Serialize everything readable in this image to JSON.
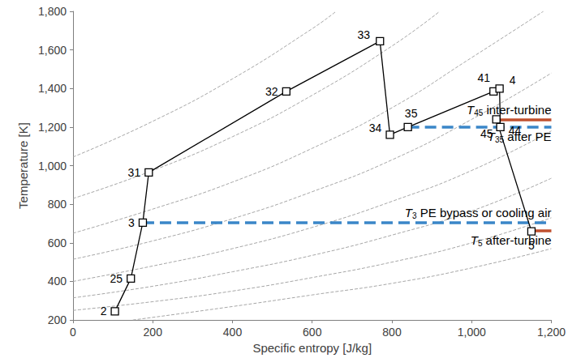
{
  "chart_data": {
    "type": "line",
    "x_label": "Specific entropy [J/kg]",
    "y_label": "Temperature [K]",
    "xlim": [
      0,
      1200
    ],
    "xticks": [
      0,
      200,
      400,
      600,
      800,
      {
        "value": 1000,
        "label": "1,000"
      },
      {
        "value": 1200,
        "label": "1,200"
      }
    ],
    "ylim": [
      200,
      1800
    ],
    "yticks": [
      200,
      400,
      600,
      800,
      {
        "value": 1000,
        "label": "1,000"
      },
      {
        "value": 1200,
        "label": "1,200"
      },
      {
        "value": 1400,
        "label": "1,400"
      },
      {
        "value": 1600,
        "label": "1,600"
      },
      {
        "value": 1800,
        "label": "1,800"
      }
    ],
    "grid": false,
    "series": [
      {
        "type": "line",
        "line_style": "dashed",
        "color": "#a6a6a6",
        "marker": "none",
        "x": [
          0,
          200,
          400,
          600,
          660
        ],
        "values": [
          1045,
          1230,
          1450,
          1710,
          1800
        ]
      },
      {
        "type": "line",
        "line_style": "dashed",
        "color": "#a6a6a6",
        "marker": "none",
        "x": [
          0,
          200,
          400,
          600,
          800,
          920
        ],
        "values": [
          830,
          975,
          1150,
          1365,
          1620,
          1800
        ]
      },
      {
        "type": "line",
        "line_style": "dashed",
        "color": "#a6a6a6",
        "marker": "none",
        "x": [
          0,
          200,
          400,
          600,
          800,
          1000,
          1180
        ],
        "values": [
          650,
          775,
          915,
          1090,
          1300,
          1560,
          1800
        ]
      },
      {
        "type": "line",
        "line_style": "dashed",
        "color": "#a6a6a6",
        "marker": "none",
        "x": [
          0,
          200,
          400,
          600,
          800,
          1000,
          1200
        ],
        "values": [
          515,
          610,
          725,
          865,
          1030,
          1240,
          1480
        ]
      },
      {
        "type": "line",
        "line_style": "dashed",
        "color": "#a6a6a6",
        "marker": "none",
        "x": [
          0,
          200,
          400,
          600,
          800,
          1000,
          1200
        ],
        "values": [
          400,
          480,
          570,
          680,
          815,
          975,
          1180
        ]
      },
      {
        "type": "line",
        "line_style": "dashed",
        "color": "#a6a6a6",
        "marker": "none",
        "x": [
          0,
          200,
          400,
          600,
          800,
          1000,
          1200
        ],
        "values": [
          315,
          375,
          450,
          535,
          640,
          765,
          935
        ]
      },
      {
        "type": "line",
        "line_style": "dashed",
        "color": "#a6a6a6",
        "marker": "none",
        "x": [
          0,
          200,
          400,
          600,
          800,
          1000,
          1200
        ],
        "values": [
          250,
          295,
          350,
          420,
          500,
          600,
          730
        ]
      },
      {
        "type": "line",
        "line_style": "dashed",
        "color": "#a6a6a6",
        "marker": "none",
        "x": [
          150,
          400,
          600,
          800,
          1000,
          1200
        ],
        "values": [
          200,
          270,
          330,
          390,
          470,
          570
        ]
      },
      {
        "type": "line",
        "line_style": "solid",
        "color": "#000000",
        "marker": "square",
        "x": [
          105,
          145,
          175,
          190,
          535,
          770,
          795,
          840,
          1055,
          1070,
          1072,
          1062,
          1150
        ],
        "values": [
          245,
          415,
          705,
          965,
          1385,
          1645,
          1160,
          1200,
          1385,
          1400,
          1200,
          1240,
          660
        ],
        "point_labels": [
          "2",
          "25",
          "3",
          "31",
          "32",
          "33",
          "34",
          "35",
          "41",
          "4",
          "44",
          "45",
          "5"
        ]
      }
    ],
    "annotations": [
      {
        "var": "T",
        "sub": "45",
        "text": "inter-turbine",
        "x": 1062,
        "y": 1240,
        "color": "#c0502e",
        "line_style": "solid",
        "position": "above"
      },
      {
        "var": "T",
        "sub": "35",
        "text": "after PE",
        "x": 840,
        "y": 1200,
        "color": "#3a86c8",
        "line_style": "dashed",
        "position": "below"
      },
      {
        "var": "T",
        "sub": "3",
        "text": "PE bypass or cooling air",
        "x": 175,
        "y": 705,
        "color": "#3a86c8",
        "line_style": "dashed",
        "position": "above"
      },
      {
        "var": "T",
        "sub": "5",
        "text": "after-turbine",
        "x": 1150,
        "y": 665,
        "color": "#c0502e",
        "line_style": "solid",
        "position": "below"
      }
    ]
  }
}
